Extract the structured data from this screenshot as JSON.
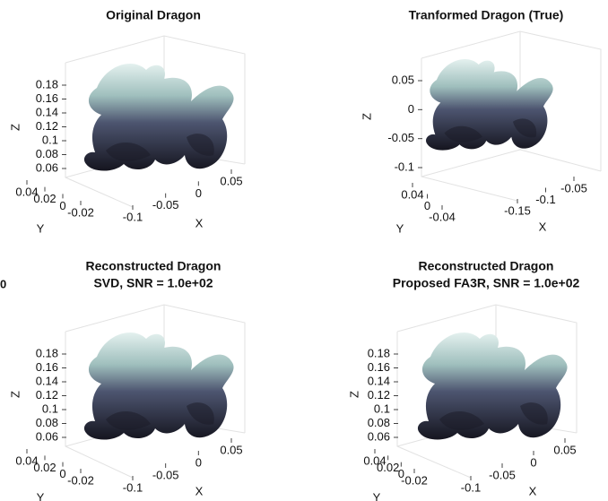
{
  "edge_label": "0",
  "panels": [
    {
      "title": [
        "Original Dragon"
      ],
      "xlabel": "X",
      "ylabel": "Y",
      "zlabel": "Z",
      "xticks": [
        -0.1,
        -0.05,
        0,
        0.05
      ],
      "yticks": [
        0.04,
        0.02,
        0,
        -0.02
      ],
      "zticks": [
        0.06,
        0.08,
        0.1,
        0.12,
        0.14,
        0.16,
        0.18
      ]
    },
    {
      "title": [
        "Tranformed Dragon (True)"
      ],
      "xlabel": "X",
      "ylabel": "Y",
      "zlabel": "Z",
      "xticks": [
        -0.15,
        -0.1,
        -0.05
      ],
      "yticks": [
        0.04,
        0,
        -0.04
      ],
      "zticks": [
        -0.1,
        -0.05,
        0,
        0.05
      ]
    },
    {
      "title": [
        "Reconstructed Dragon",
        "SVD, SNR = 1.0e+02"
      ],
      "xlabel": "X",
      "ylabel": "Y",
      "zlabel": "Z",
      "xticks": [
        -0.1,
        -0.05,
        0,
        0.05
      ],
      "yticks": [
        0.04,
        0.02,
        0,
        -0.02
      ],
      "zticks": [
        0.06,
        0.08,
        0.1,
        0.12,
        0.14,
        0.16,
        0.18
      ]
    },
    {
      "title": [
        "Reconstructed Dragon",
        "Proposed FA3R, SNR = 1.0e+02"
      ],
      "xlabel": "X",
      "ylabel": "Y",
      "zlabel": "Z",
      "xticks": [
        -0.1,
        -0.05,
        0,
        0.05
      ],
      "yticks": [
        0.04,
        0.02,
        0,
        -0.02
      ],
      "zticks": [
        0.06,
        0.08,
        0.1,
        0.12,
        0.14,
        0.16,
        0.18
      ]
    }
  ]
}
